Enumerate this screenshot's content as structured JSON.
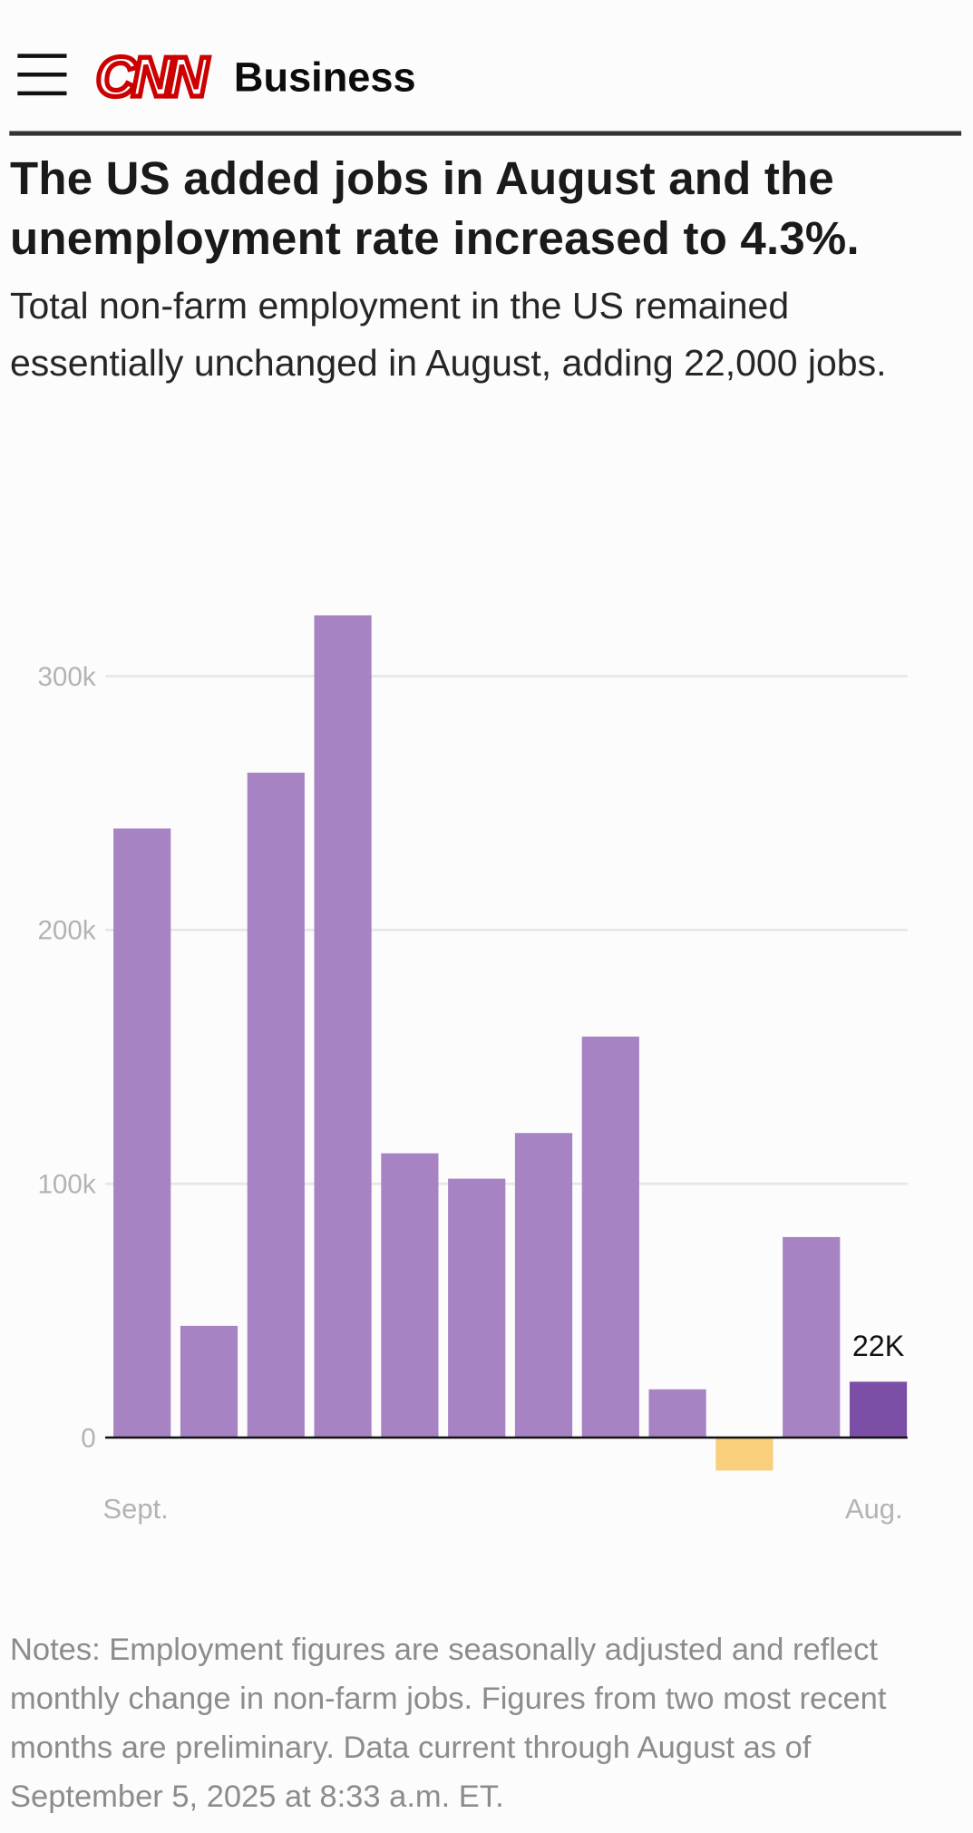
{
  "header": {
    "logo": "CNN",
    "brand": "Business"
  },
  "chart_data": {
    "type": "bar",
    "title": "The US added jobs in August and the unemployment rate increased to 4.3%.",
    "subtitle": "Total non-farm employment in the US remained essentially unchanged in August, adding 22,000 jobs.",
    "notes": "Notes: Employment figures are seasonally adjusted and reflect monthly change in non-farm jobs. Figures from two most recent months are preliminary. Data current through August as of September 5, 2025 at 8:33 a.m. ET.",
    "categories": [
      "Sept.",
      null,
      null,
      null,
      null,
      null,
      null,
      null,
      null,
      null,
      null,
      "Aug."
    ],
    "values": [
      240000,
      44000,
      262000,
      324000,
      112000,
      102000,
      120000,
      158000,
      19000,
      -13000,
      79000,
      22000
    ],
    "value_labels": [
      null,
      null,
      null,
      null,
      null,
      null,
      null,
      null,
      null,
      null,
      null,
      "22K"
    ],
    "colors": [
      "#a783c3",
      "#a783c3",
      "#a783c3",
      "#a783c3",
      "#a783c3",
      "#a783c3",
      "#a783c3",
      "#a783c3",
      "#a783c3",
      "#f9cf7b",
      "#a783c3",
      "#7b4fa6"
    ],
    "ylim": [
      -15000,
      330000
    ],
    "yticks": [
      0,
      {
        "value": 100000,
        "label": "100k"
      },
      {
        "value": 200000,
        "label": "200k"
      },
      {
        "value": 300000,
        "label": "300k"
      }
    ],
    "grid": true
  }
}
